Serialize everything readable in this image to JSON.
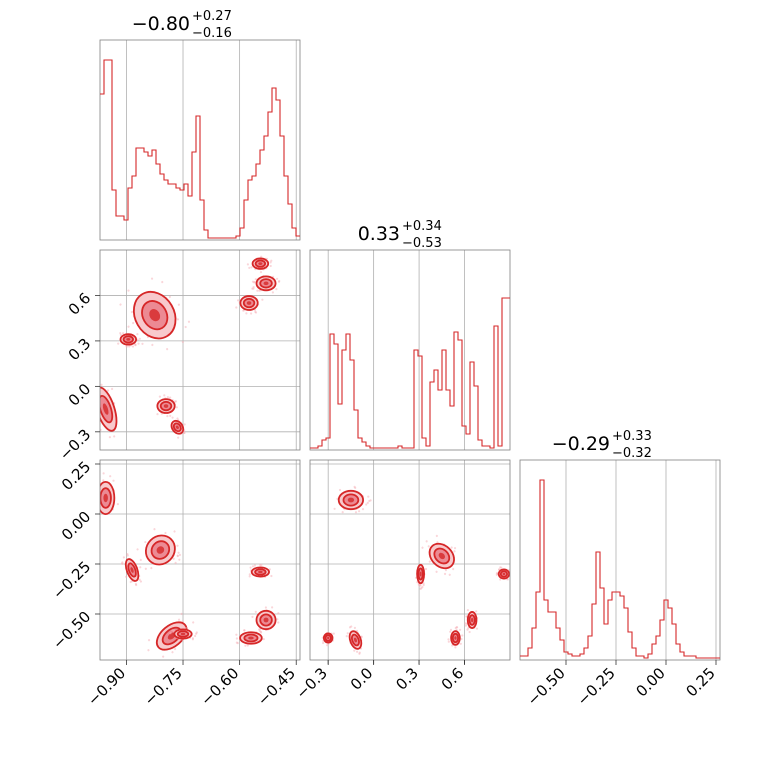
{
  "chart_data": {
    "type": "corner",
    "color": "#d62728",
    "parameters": [
      {
        "title_value": "−0.80",
        "title_plus": "+0.27",
        "title_minus": "−0.16",
        "range": [
          -0.97,
          -0.44
        ],
        "ticks": [
          -0.9,
          -0.75,
          -0.6,
          -0.45
        ],
        "tick_labels": [
          "−0.90",
          "−0.75",
          "−0.60",
          "−0.45"
        ],
        "hist": {
          "edges_start": -0.97,
          "edges_step": 0.0106,
          "counts": [
            0.73,
            0.9,
            0.9,
            0.25,
            0.12,
            0.12,
            0.1,
            0.26,
            0.32,
            0.46,
            0.46,
            0.44,
            0.42,
            0.45,
            0.38,
            0.33,
            0.3,
            0.28,
            0.28,
            0.26,
            0.25,
            0.28,
            0.22,
            0.44,
            0.62,
            0.2,
            0.05,
            0.01,
            0.01,
            0.01,
            0.01,
            0.01,
            0.01,
            0.01,
            0.02,
            0.06,
            0.2,
            0.3,
            0.32,
            0.38,
            0.45,
            0.52,
            0.64,
            0.76,
            0.7,
            0.52,
            0.32,
            0.18,
            0.06,
            0.02
          ]
        }
      },
      {
        "title_value": "0.33",
        "title_plus": "+0.34",
        "title_minus": "−0.53",
        "range": [
          -0.42,
          0.9
        ],
        "ticks": [
          -0.3,
          0.0,
          0.3,
          0.6
        ],
        "tick_labels": [
          "−0.3",
          "0.0",
          "0.3",
          "0.6"
        ],
        "hist": {
          "edges_start": -0.42,
          "edges_step": 0.0264,
          "counts": [
            0.01,
            0.01,
            0.02,
            0.05,
            0.06,
            0.58,
            0.53,
            0.23,
            0.5,
            0.58,
            0.45,
            0.2,
            0.06,
            0.04,
            0.02,
            0.01,
            0.01,
            0.01,
            0.01,
            0.01,
            0.01,
            0.01,
            0.02,
            0.01,
            0.01,
            0.01,
            0.5,
            0.47,
            0.06,
            0.02,
            0.34,
            0.4,
            0.3,
            0.5,
            0.3,
            0.22,
            0.59,
            0.55,
            0.12,
            0.08,
            0.44,
            0.32,
            0.05,
            0.02,
            0.02,
            0.01,
            0.62,
            0.02,
            0.76,
            0.76
          ]
        }
      },
      {
        "title_value": "−0.29",
        "title_plus": "+0.33",
        "title_minus": "−0.32",
        "range": [
          -0.73,
          0.27
        ],
        "ticks": [
          -0.5,
          -0.25,
          0.0,
          0.25
        ],
        "tick_labels": [
          "−0.50",
          "−0.25",
          "0.00",
          "0.25"
        ],
        "hist": {
          "edges_start": -0.73,
          "edges_step": 0.02,
          "counts": [
            0.02,
            0.02,
            0.06,
            0.16,
            0.34,
            0.9,
            0.3,
            0.24,
            0.24,
            0.16,
            0.1,
            0.04,
            0.03,
            0.02,
            0.02,
            0.03,
            0.06,
            0.12,
            0.28,
            0.54,
            0.36,
            0.18,
            0.3,
            0.34,
            0.34,
            0.32,
            0.26,
            0.14,
            0.06,
            0.02,
            0.02,
            0.01,
            0.03,
            0.08,
            0.12,
            0.2,
            0.3,
            0.26,
            0.18,
            0.08,
            0.04,
            0.02,
            0.02,
            0.02,
            0.01,
            0.01,
            0.01,
            0.01,
            0.01,
            0.01
          ]
        }
      }
    ],
    "pairs": [
      {
        "x_param": 0,
        "y_param": 1,
        "blobs": [
          {
            "x": -0.545,
            "y": 0.81,
            "sx": 0.018,
            "sy": 0.03,
            "rot": 0
          },
          {
            "x": -0.53,
            "y": 0.68,
            "sx": 0.022,
            "sy": 0.04,
            "rot": 0
          },
          {
            "x": -0.575,
            "y": 0.55,
            "sx": 0.02,
            "sy": 0.04,
            "rot": 0
          },
          {
            "x": -0.825,
            "y": 0.47,
            "sx": 0.045,
            "sy": 0.14,
            "rot": -30
          },
          {
            "x": -0.895,
            "y": 0.31,
            "sx": 0.018,
            "sy": 0.03,
            "rot": 0
          },
          {
            "x": -0.795,
            "y": -0.13,
            "sx": 0.02,
            "sy": 0.04,
            "rot": 0
          },
          {
            "x": -0.765,
            "y": -0.27,
            "sx": 0.012,
            "sy": 0.04,
            "rot": -35
          },
          {
            "x": -0.955,
            "y": -0.15,
            "sx": 0.02,
            "sy": 0.13,
            "rot": -18
          }
        ]
      },
      {
        "x_param": 0,
        "y_param": 2,
        "blobs": [
          {
            "x": -0.955,
            "y": 0.08,
            "sx": 0.02,
            "sy": 0.07,
            "rot": 0
          },
          {
            "x": -0.81,
            "y": -0.18,
            "sx": 0.035,
            "sy": 0.06,
            "rot": -45
          },
          {
            "x": -0.885,
            "y": -0.28,
            "sx": 0.012,
            "sy": 0.05,
            "rot": -20
          },
          {
            "x": -0.545,
            "y": -0.29,
            "sx": 0.02,
            "sy": 0.02,
            "rot": 0
          },
          {
            "x": -0.53,
            "y": -0.53,
            "sx": 0.022,
            "sy": 0.04,
            "rot": 0
          },
          {
            "x": -0.57,
            "y": -0.62,
            "sx": 0.025,
            "sy": 0.025,
            "rot": 0
          },
          {
            "x": -0.78,
            "y": -0.61,
            "sx": 0.04,
            "sy": 0.045,
            "rot": -40
          },
          {
            "x": -0.75,
            "y": -0.6,
            "sx": 0.02,
            "sy": 0.02,
            "rot": 0
          }
        ]
      },
      {
        "x_param": 1,
        "y_param": 2,
        "blobs": [
          {
            "x": -0.15,
            "y": 0.07,
            "sx": 0.07,
            "sy": 0.04,
            "rot": 0
          },
          {
            "x": 0.45,
            "y": -0.21,
            "sx": 0.06,
            "sy": 0.06,
            "rot": -45
          },
          {
            "x": 0.31,
            "y": -0.3,
            "sx": 0.02,
            "sy": 0.04,
            "rot": 0
          },
          {
            "x": 0.86,
            "y": -0.3,
            "sx": 0.03,
            "sy": 0.02,
            "rot": 0
          },
          {
            "x": 0.65,
            "y": -0.53,
            "sx": 0.025,
            "sy": 0.035,
            "rot": 0
          },
          {
            "x": 0.54,
            "y": -0.62,
            "sx": 0.025,
            "sy": 0.03,
            "rot": 0
          },
          {
            "x": -0.3,
            "y": -0.62,
            "sx": 0.025,
            "sy": 0.02,
            "rot": 0
          },
          {
            "x": -0.12,
            "y": -0.63,
            "sx": 0.03,
            "sy": 0.04,
            "rot": -20
          }
        ]
      }
    ]
  }
}
